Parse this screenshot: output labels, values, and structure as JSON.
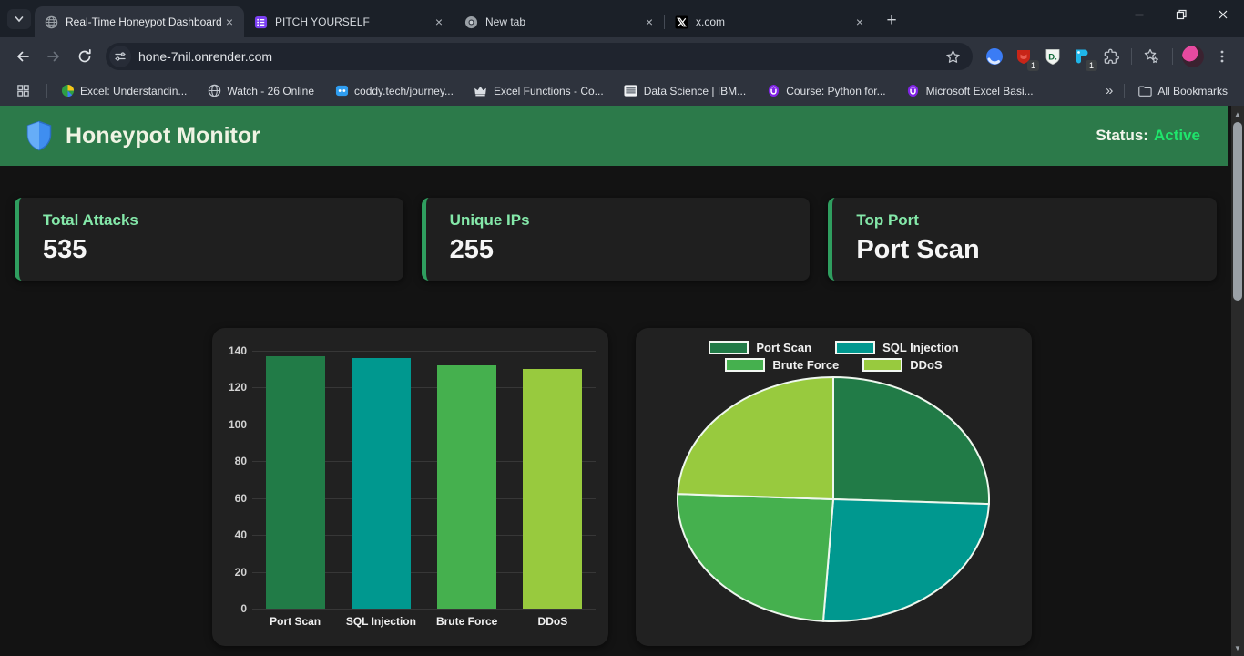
{
  "browser": {
    "tab_search_icon": "chevron-down",
    "tabs": [
      {
        "title": "Real-Time Honeypot Dashboard",
        "icon": "globe-icon",
        "active": true
      },
      {
        "title": "PITCH YOURSELF",
        "icon": "purple-list-icon",
        "active": false
      },
      {
        "title": "New tab",
        "icon": "chrome-icon",
        "active": false
      },
      {
        "title": "x.com",
        "icon": "x-logo-icon",
        "active": false
      }
    ],
    "close_glyph": "×",
    "new_tab_glyph": "+",
    "url": "hone-7nil.onrender.com",
    "extension_badge_red": "1",
    "extension_badge_blue": "1",
    "bookmarks": [
      {
        "label": "Excel: Understandin...",
        "icon": "colorful-globe-icon"
      },
      {
        "label": "Watch - 26 Online",
        "icon": "globe-icon"
      },
      {
        "label": "coddy.tech/journey...",
        "icon": "coddy-icon"
      },
      {
        "label": "Excel Functions - Co...",
        "icon": "crown-icon"
      },
      {
        "label": "Data Science | IBM...",
        "icon": "ibm-icon"
      },
      {
        "label": "Course: Python for...",
        "icon": "udemy-icon"
      },
      {
        "label": "Microsoft Excel Basi...",
        "icon": "udemy-icon"
      }
    ],
    "bookmarks_overflow_glyph": "»",
    "all_bookmarks_label": "All Bookmarks"
  },
  "header": {
    "shield_icon": "shield-icon",
    "title": "Honeypot Monitor",
    "status_label": "Status:",
    "status_value": "Active",
    "bg_color": "#2c7a4a",
    "status_color": "#1fe56c"
  },
  "cards": [
    {
      "title": "Total Attacks",
      "value": "535"
    },
    {
      "title": "Unique IPs",
      "value": "255"
    },
    {
      "title": "Top Port",
      "value": "Port Scan"
    }
  ],
  "chart_data": [
    {
      "type": "bar",
      "categories": [
        "Port Scan",
        "SQL Injection",
        "Brute Force",
        "DDoS"
      ],
      "values": [
        137,
        136,
        132,
        130
      ],
      "colors": [
        "#217b47",
        "#00988f",
        "#45b04e",
        "#98ca3e"
      ],
      "title": "",
      "xlabel": "",
      "ylabel": "",
      "ylim": [
        0,
        140
      ],
      "ytick_step": 20,
      "grid": true,
      "background": "#212121"
    },
    {
      "type": "pie",
      "categories": [
        "Port Scan",
        "SQL Injection",
        "Brute Force",
        "DDoS"
      ],
      "values": [
        137,
        136,
        132,
        130
      ],
      "colors": [
        "#217b47",
        "#00988f",
        "#45b04e",
        "#98ca3e"
      ],
      "legend_position": "top",
      "legend_rows": [
        [
          "Port Scan",
          "SQL Injection"
        ],
        [
          "Brute Force",
          "DDoS"
        ]
      ],
      "stroke_color": "#eef7ee",
      "start_angle_deg": 0,
      "direction": "clockwise"
    }
  ]
}
